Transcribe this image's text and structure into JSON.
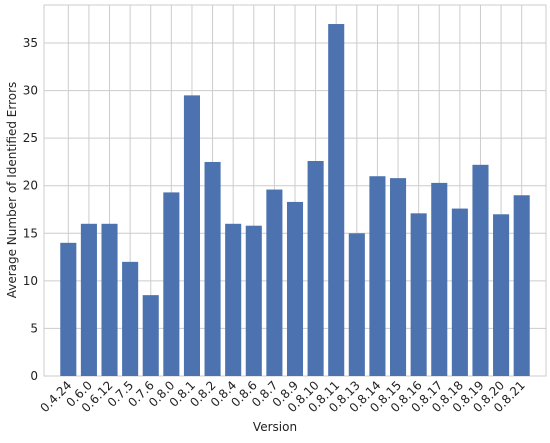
{
  "chart_data": {
    "type": "bar",
    "x_label": "Version",
    "y_label": "Average Number of Identified Errors",
    "categories": [
      "0.4.24",
      "0.6.0",
      "0.6.12",
      "0.7.5",
      "0.7.6",
      "0.8.0",
      "0.8.1",
      "0.8.2",
      "0.8.4",
      "0.8.6",
      "0.8.7",
      "0.8.9",
      "0.8.10",
      "0.8.11",
      "0.8.13",
      "0.8.14",
      "0.8.15",
      "0.8.16",
      "0.8.17",
      "0.8.18",
      "0.8.19",
      "0.8.20",
      "0.8.21"
    ],
    "values": [
      14,
      16,
      16,
      12,
      8.5,
      19.3,
      29.5,
      22.5,
      16,
      15.8,
      19.6,
      18.3,
      22.6,
      37,
      15,
      21,
      20.8,
      17.1,
      20.3,
      17.6,
      22.2,
      17,
      19
    ],
    "color": "#4c72b0",
    "ylim": [
      0,
      39
    ],
    "yticks": [
      0,
      5,
      10,
      15,
      20,
      25,
      30,
      35
    ],
    "grid": true
  }
}
